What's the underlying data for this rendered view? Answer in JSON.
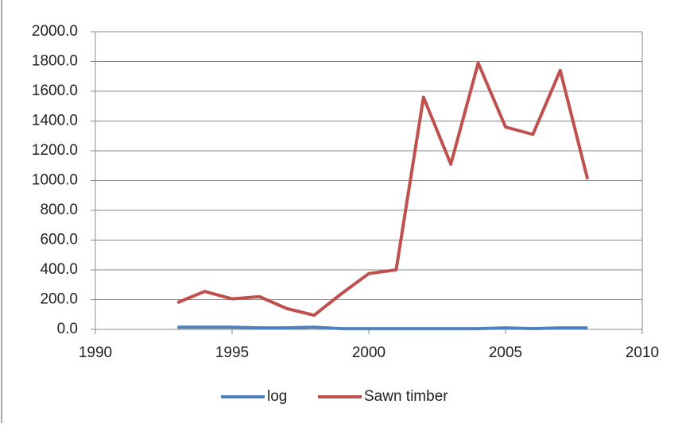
{
  "chart_data": {
    "type": "line",
    "x": [
      1993,
      1994,
      1995,
      1996,
      1997,
      1998,
      1999,
      2000,
      2001,
      2002,
      2003,
      2004,
      2005,
      2006,
      2007,
      2008
    ],
    "series": [
      {
        "name": "log",
        "color": "#4f81bd",
        "values": [
          15,
          15,
          15,
          10,
          10,
          15,
          5,
          5,
          5,
          5,
          5,
          5,
          10,
          5,
          10,
          10
        ]
      },
      {
        "name": "Sawn timber",
        "color": "#c0504d",
        "values": [
          180,
          255,
          205,
          220,
          140,
          95,
          240,
          375,
          400,
          1560,
          1110,
          1790,
          1360,
          1310,
          1740,
          1010
        ]
      }
    ],
    "xlim": [
      1990,
      2010
    ],
    "xticks": [
      1990,
      1995,
      2000,
      2005,
      2010
    ],
    "ylim": [
      0,
      2000
    ],
    "yticks": [
      {
        "value": 0,
        "label": "0.0"
      },
      {
        "value": 200,
        "label": "200.0"
      },
      {
        "value": 400,
        "label": "400.0"
      },
      {
        "value": 600,
        "label": "600.0"
      },
      {
        "value": 800,
        "label": "800.0"
      },
      {
        "value": 1000,
        "label": "1000.0"
      },
      {
        "value": 1200,
        "label": "1200.0"
      },
      {
        "value": 1400,
        "label": "1400.0"
      },
      {
        "value": 1600,
        "label": "1600.0"
      },
      {
        "value": 1800,
        "label": "1800.0"
      },
      {
        "value": 2000,
        "label": "2000.0"
      }
    ],
    "grid": true,
    "legend": "bottom"
  }
}
